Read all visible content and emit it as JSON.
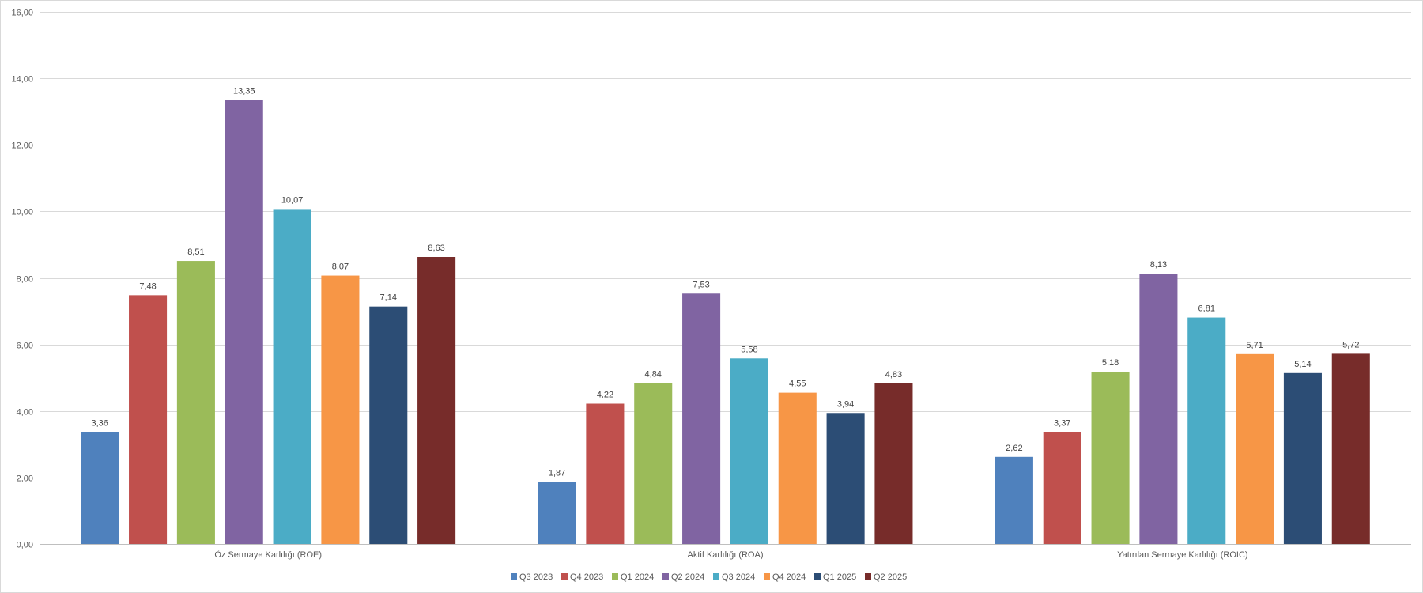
{
  "chart_data": {
    "type": "bar",
    "categories": [
      "Öz Sermaye Karlılığı (ROE)",
      "Aktif Karlılığı (ROA)",
      "Yatırılan Sermaye Karlılığı (ROIC)"
    ],
    "series": [
      {
        "name": "Q3 2023",
        "color": "#4F81BD",
        "values": [
          3.36,
          1.87,
          2.62
        ],
        "labels": [
          "3,36",
          "1,87",
          "2,62"
        ]
      },
      {
        "name": "Q4 2023",
        "color": "#C0504D",
        "values": [
          7.48,
          4.22,
          3.37
        ],
        "labels": [
          "7,48",
          "4,22",
          "3,37"
        ]
      },
      {
        "name": "Q1 2024",
        "color": "#9BBB59",
        "values": [
          8.51,
          4.84,
          5.18
        ],
        "labels": [
          "8,51",
          "4,84",
          "5,18"
        ]
      },
      {
        "name": "Q2 2024",
        "color": "#8064A2",
        "values": [
          13.35,
          7.53,
          8.13
        ],
        "labels": [
          "13,35",
          "7,53",
          "8,13"
        ]
      },
      {
        "name": "Q3 2024",
        "color": "#4BACC6",
        "values": [
          10.07,
          5.58,
          6.81
        ],
        "labels": [
          "10,07",
          "5,58",
          "6,81"
        ]
      },
      {
        "name": "Q4 2024",
        "color": "#F79646",
        "values": [
          8.07,
          4.55,
          5.71
        ],
        "labels": [
          "8,07",
          "4,55",
          "5,71"
        ]
      },
      {
        "name": "Q1 2025",
        "color": "#2C4D75",
        "values": [
          7.14,
          3.94,
          5.14
        ],
        "labels": [
          "7,14",
          "3,94",
          "5,14"
        ]
      },
      {
        "name": "Q2 2025",
        "color": "#772C2A",
        "values": [
          8.63,
          4.83,
          5.72
        ],
        "labels": [
          "8,63",
          "4,83",
          "5,72"
        ]
      }
    ],
    "ylim": [
      0,
      16
    ],
    "yticks": [
      0,
      2,
      4,
      6,
      8,
      10,
      12,
      14,
      16
    ],
    "ytick_labels": [
      "0,00",
      "2,00",
      "4,00",
      "6,00",
      "8,00",
      "10,00",
      "12,00",
      "14,00",
      "16,00"
    ],
    "grid": true,
    "legend": "bottom"
  }
}
